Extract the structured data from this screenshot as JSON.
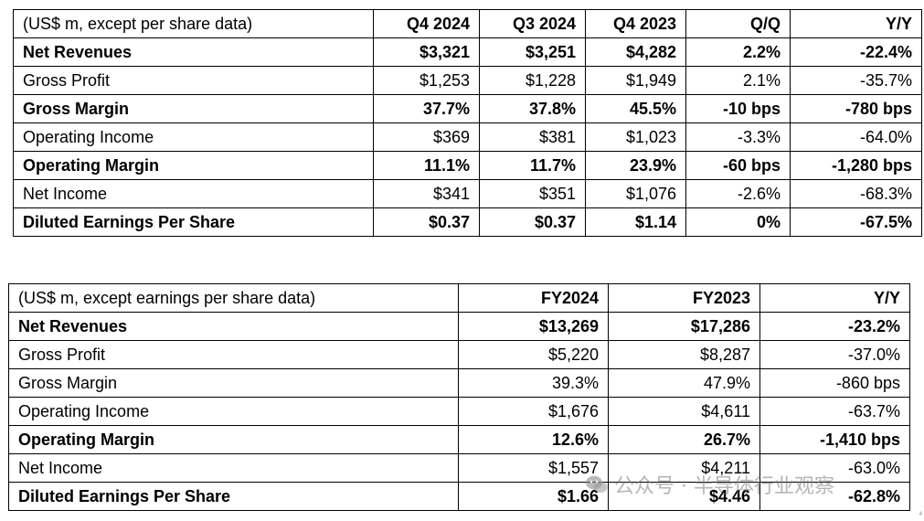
{
  "quarterly": {
    "headers": [
      "(US$ m, except per share data)",
      "Q4 2024",
      "Q3 2024",
      "Q4 2023",
      "Q/Q",
      "Y/Y"
    ],
    "rows": [
      {
        "label": "Net Revenues",
        "bold": true,
        "values": [
          "$3,321",
          "$3,251",
          "$4,282",
          "2.2%",
          "-22.4%"
        ]
      },
      {
        "label": "Gross Profit",
        "bold": false,
        "values": [
          "$1,253",
          "$1,228",
          "$1,949",
          "2.1%",
          "-35.7%"
        ]
      },
      {
        "label": "Gross Margin",
        "bold": true,
        "values": [
          "37.7%",
          "37.8%",
          "45.5%",
          "-10 bps",
          "-780 bps"
        ]
      },
      {
        "label": "Operating Income",
        "bold": false,
        "values": [
          "$369",
          "$381",
          "$1,023",
          "-3.3%",
          "-64.0%"
        ]
      },
      {
        "label": "Operating Margin",
        "bold": true,
        "values": [
          "11.1%",
          "11.7%",
          "23.9%",
          "-60 bps",
          "-1,280 bps"
        ]
      },
      {
        "label": "Net Income",
        "bold": false,
        "values": [
          "$341",
          "$351",
          "$1,076",
          "-2.6%",
          "-68.3%"
        ]
      },
      {
        "label": "Diluted Earnings Per Share",
        "bold": true,
        "values": [
          "$0.37",
          "$0.37",
          "$1.14",
          "0%",
          "-67.5%"
        ]
      }
    ]
  },
  "annual": {
    "headers": [
      "(US$ m, except earnings per share data)",
      "FY2024",
      "FY2023",
      "Y/Y"
    ],
    "rows": [
      {
        "label": "Net Revenues",
        "bold": true,
        "values": [
          "$13,269",
          "$17,286",
          "-23.2%"
        ]
      },
      {
        "label": "Gross Profit",
        "bold": false,
        "values": [
          "$5,220",
          "$8,287",
          "-37.0%"
        ]
      },
      {
        "label": "Gross Margin",
        "bold": false,
        "values": [
          "39.3%",
          "47.9%",
          "-860 bps"
        ]
      },
      {
        "label": "Operating Income",
        "bold": false,
        "values": [
          "$1,676",
          "$4,611",
          "-63.7%"
        ]
      },
      {
        "label": "Operating Margin",
        "bold": true,
        "values": [
          "12.6%",
          "26.7%",
          "-1,410 bps"
        ]
      },
      {
        "label": "Net Income",
        "bold": false,
        "values": [
          "$1,557",
          "$4,211",
          "-63.0%"
        ]
      },
      {
        "label": "Diluted Earnings Per Share",
        "bold": true,
        "values": [
          "$1.66",
          "$4.46",
          "-62.8%"
        ]
      }
    ]
  },
  "watermark": {
    "icon": "wechat-logo-icon",
    "text": "公众号 · 半导体行业观察"
  },
  "corner_mark": "4"
}
